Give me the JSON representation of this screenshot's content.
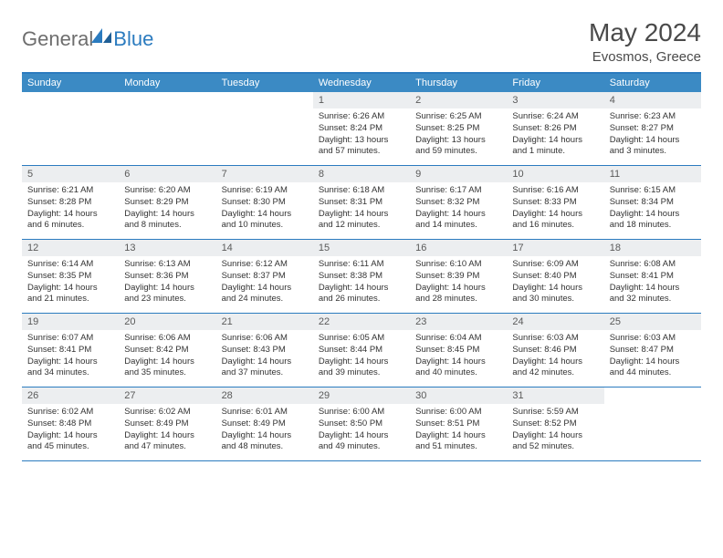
{
  "brand": {
    "part1": "General",
    "part2": "Blue"
  },
  "title": "May 2024",
  "subtitle": "Evosmos, Greece",
  "colors": {
    "accent": "#3b8ac4",
    "border": "#2b7bbf",
    "daynum_bg": "#eceef0",
    "text_muted": "#6e6e6e",
    "text_body": "#333333"
  },
  "dow": [
    "Sunday",
    "Monday",
    "Tuesday",
    "Wednesday",
    "Thursday",
    "Friday",
    "Saturday"
  ],
  "weeks": [
    [
      {
        "empty": true
      },
      {
        "empty": true
      },
      {
        "empty": true
      },
      {
        "n": "1",
        "sr": "Sunrise: 6:26 AM",
        "ss": "Sunset: 8:24 PM",
        "dl1": "Daylight: 13 hours",
        "dl2": "and 57 minutes."
      },
      {
        "n": "2",
        "sr": "Sunrise: 6:25 AM",
        "ss": "Sunset: 8:25 PM",
        "dl1": "Daylight: 13 hours",
        "dl2": "and 59 minutes."
      },
      {
        "n": "3",
        "sr": "Sunrise: 6:24 AM",
        "ss": "Sunset: 8:26 PM",
        "dl1": "Daylight: 14 hours",
        "dl2": "and 1 minute."
      },
      {
        "n": "4",
        "sr": "Sunrise: 6:23 AM",
        "ss": "Sunset: 8:27 PM",
        "dl1": "Daylight: 14 hours",
        "dl2": "and 3 minutes."
      }
    ],
    [
      {
        "n": "5",
        "sr": "Sunrise: 6:21 AM",
        "ss": "Sunset: 8:28 PM",
        "dl1": "Daylight: 14 hours",
        "dl2": "and 6 minutes."
      },
      {
        "n": "6",
        "sr": "Sunrise: 6:20 AM",
        "ss": "Sunset: 8:29 PM",
        "dl1": "Daylight: 14 hours",
        "dl2": "and 8 minutes."
      },
      {
        "n": "7",
        "sr": "Sunrise: 6:19 AM",
        "ss": "Sunset: 8:30 PM",
        "dl1": "Daylight: 14 hours",
        "dl2": "and 10 minutes."
      },
      {
        "n": "8",
        "sr": "Sunrise: 6:18 AM",
        "ss": "Sunset: 8:31 PM",
        "dl1": "Daylight: 14 hours",
        "dl2": "and 12 minutes."
      },
      {
        "n": "9",
        "sr": "Sunrise: 6:17 AM",
        "ss": "Sunset: 8:32 PM",
        "dl1": "Daylight: 14 hours",
        "dl2": "and 14 minutes."
      },
      {
        "n": "10",
        "sr": "Sunrise: 6:16 AM",
        "ss": "Sunset: 8:33 PM",
        "dl1": "Daylight: 14 hours",
        "dl2": "and 16 minutes."
      },
      {
        "n": "11",
        "sr": "Sunrise: 6:15 AM",
        "ss": "Sunset: 8:34 PM",
        "dl1": "Daylight: 14 hours",
        "dl2": "and 18 minutes."
      }
    ],
    [
      {
        "n": "12",
        "sr": "Sunrise: 6:14 AM",
        "ss": "Sunset: 8:35 PM",
        "dl1": "Daylight: 14 hours",
        "dl2": "and 21 minutes."
      },
      {
        "n": "13",
        "sr": "Sunrise: 6:13 AM",
        "ss": "Sunset: 8:36 PM",
        "dl1": "Daylight: 14 hours",
        "dl2": "and 23 minutes."
      },
      {
        "n": "14",
        "sr": "Sunrise: 6:12 AM",
        "ss": "Sunset: 8:37 PM",
        "dl1": "Daylight: 14 hours",
        "dl2": "and 24 minutes."
      },
      {
        "n": "15",
        "sr": "Sunrise: 6:11 AM",
        "ss": "Sunset: 8:38 PM",
        "dl1": "Daylight: 14 hours",
        "dl2": "and 26 minutes."
      },
      {
        "n": "16",
        "sr": "Sunrise: 6:10 AM",
        "ss": "Sunset: 8:39 PM",
        "dl1": "Daylight: 14 hours",
        "dl2": "and 28 minutes."
      },
      {
        "n": "17",
        "sr": "Sunrise: 6:09 AM",
        "ss": "Sunset: 8:40 PM",
        "dl1": "Daylight: 14 hours",
        "dl2": "and 30 minutes."
      },
      {
        "n": "18",
        "sr": "Sunrise: 6:08 AM",
        "ss": "Sunset: 8:41 PM",
        "dl1": "Daylight: 14 hours",
        "dl2": "and 32 minutes."
      }
    ],
    [
      {
        "n": "19",
        "sr": "Sunrise: 6:07 AM",
        "ss": "Sunset: 8:41 PM",
        "dl1": "Daylight: 14 hours",
        "dl2": "and 34 minutes."
      },
      {
        "n": "20",
        "sr": "Sunrise: 6:06 AM",
        "ss": "Sunset: 8:42 PM",
        "dl1": "Daylight: 14 hours",
        "dl2": "and 35 minutes."
      },
      {
        "n": "21",
        "sr": "Sunrise: 6:06 AM",
        "ss": "Sunset: 8:43 PM",
        "dl1": "Daylight: 14 hours",
        "dl2": "and 37 minutes."
      },
      {
        "n": "22",
        "sr": "Sunrise: 6:05 AM",
        "ss": "Sunset: 8:44 PM",
        "dl1": "Daylight: 14 hours",
        "dl2": "and 39 minutes."
      },
      {
        "n": "23",
        "sr": "Sunrise: 6:04 AM",
        "ss": "Sunset: 8:45 PM",
        "dl1": "Daylight: 14 hours",
        "dl2": "and 40 minutes."
      },
      {
        "n": "24",
        "sr": "Sunrise: 6:03 AM",
        "ss": "Sunset: 8:46 PM",
        "dl1": "Daylight: 14 hours",
        "dl2": "and 42 minutes."
      },
      {
        "n": "25",
        "sr": "Sunrise: 6:03 AM",
        "ss": "Sunset: 8:47 PM",
        "dl1": "Daylight: 14 hours",
        "dl2": "and 44 minutes."
      }
    ],
    [
      {
        "n": "26",
        "sr": "Sunrise: 6:02 AM",
        "ss": "Sunset: 8:48 PM",
        "dl1": "Daylight: 14 hours",
        "dl2": "and 45 minutes."
      },
      {
        "n": "27",
        "sr": "Sunrise: 6:02 AM",
        "ss": "Sunset: 8:49 PM",
        "dl1": "Daylight: 14 hours",
        "dl2": "and 47 minutes."
      },
      {
        "n": "28",
        "sr": "Sunrise: 6:01 AM",
        "ss": "Sunset: 8:49 PM",
        "dl1": "Daylight: 14 hours",
        "dl2": "and 48 minutes."
      },
      {
        "n": "29",
        "sr": "Sunrise: 6:00 AM",
        "ss": "Sunset: 8:50 PM",
        "dl1": "Daylight: 14 hours",
        "dl2": "and 49 minutes."
      },
      {
        "n": "30",
        "sr": "Sunrise: 6:00 AM",
        "ss": "Sunset: 8:51 PM",
        "dl1": "Daylight: 14 hours",
        "dl2": "and 51 minutes."
      },
      {
        "n": "31",
        "sr": "Sunrise: 5:59 AM",
        "ss": "Sunset: 8:52 PM",
        "dl1": "Daylight: 14 hours",
        "dl2": "and 52 minutes."
      },
      {
        "empty": true
      }
    ]
  ]
}
